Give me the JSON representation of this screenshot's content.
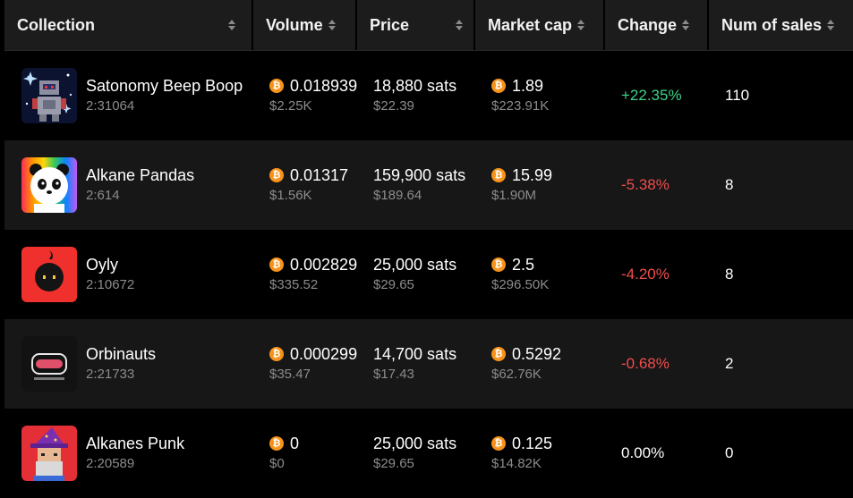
{
  "columns": [
    "Collection",
    "Volume",
    "Price",
    "Market cap",
    "Change",
    "Num of sales"
  ],
  "btc_symbol": "₿",
  "colors": {
    "positive": "#3fd08a",
    "negative": "#f14c4c",
    "btc": "#f7931a"
  },
  "rows": [
    {
      "name": "Satonomy Beep Boop",
      "id": "2:31064",
      "icon": "robot-avatar-icon",
      "volume_btc": "0.018939",
      "volume_usd": "$2.25K",
      "price_sats": "18,880 sats",
      "price_usd": "$22.39",
      "mcap_btc": "1.89",
      "mcap_usd": "$223.91K",
      "change": "+22.35%",
      "change_dir": "positive",
      "sales": "110"
    },
    {
      "name": "Alkane Pandas",
      "id": "2:614",
      "icon": "panda-avatar-icon",
      "volume_btc": "0.01317",
      "volume_usd": "$1.56K",
      "price_sats": "159,900 sats",
      "price_usd": "$189.64",
      "mcap_btc": "15.99",
      "mcap_usd": "$1.90M",
      "change": "-5.38%",
      "change_dir": "negative",
      "sales": "8"
    },
    {
      "name": "Oyly",
      "id": "2:10672",
      "icon": "oyly-avatar-icon",
      "volume_btc": "0.002829",
      "volume_usd": "$335.52",
      "price_sats": "25,000 sats",
      "price_usd": "$29.65",
      "mcap_btc": "2.5",
      "mcap_usd": "$296.50K",
      "change": "-4.20%",
      "change_dir": "negative",
      "sales": "8"
    },
    {
      "name": "Orbinauts",
      "id": "2:21733",
      "icon": "orbinauts-avatar-icon",
      "volume_btc": "0.000299",
      "volume_usd": "$35.47",
      "price_sats": "14,700 sats",
      "price_usd": "$17.43",
      "mcap_btc": "0.5292",
      "mcap_usd": "$62.76K",
      "change": "-0.68%",
      "change_dir": "negative",
      "sales": "2"
    },
    {
      "name": "Alkanes Punk",
      "id": "2:20589",
      "icon": "wizard-punk-avatar-icon",
      "volume_btc": "0",
      "volume_usd": "$0",
      "price_sats": "25,000 sats",
      "price_usd": "$29.65",
      "mcap_btc": "0.125",
      "mcap_usd": "$14.82K",
      "change": "0.00%",
      "change_dir": "neutral",
      "sales": "0"
    }
  ]
}
